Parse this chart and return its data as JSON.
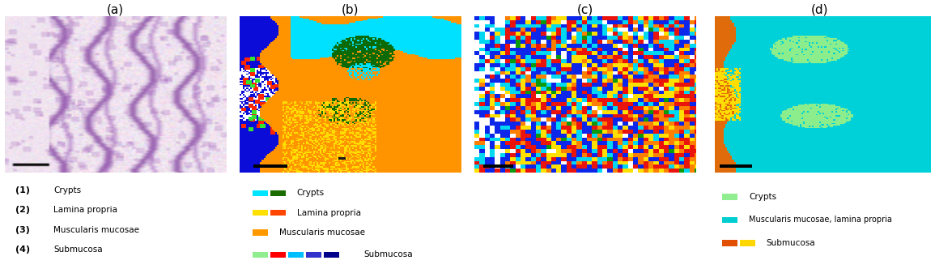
{
  "fig_width": 11.55,
  "fig_height": 3.32,
  "dpi": 100,
  "panel_labels": [
    "(a)",
    "(b)",
    "(c)",
    "(d)"
  ],
  "panel_label_fontsize": 11,
  "background_color": "#ffffff",
  "text_fontsize": 8.0,
  "legend_a_items": [
    {
      "num": "(1)",
      "text": "Crypts"
    },
    {
      "num": "(2)",
      "text": "Lamina propria"
    },
    {
      "num": "(3)",
      "text": "Muscularis mucosae"
    },
    {
      "num": "(4)",
      "text": "Submucosa"
    }
  ],
  "legend_b_items": [
    {
      "label": "Crypts",
      "colors": [
        "#00E5FF",
        "#1A6B00"
      ]
    },
    {
      "label": "Lamina propria",
      "colors": [
        "#FFE000",
        "#FF4500"
      ]
    },
    {
      "label": "Muscularis mucosae",
      "colors": [
        "#FF9900"
      ]
    },
    {
      "label": "Submucosa",
      "colors": [
        "#90EE90",
        "#FF0000",
        "#00BFFF",
        "#3333CC",
        "#00008B"
      ]
    }
  ],
  "legend_d_items": [
    {
      "label": "Crypts",
      "colors": [
        "#90EE90"
      ]
    },
    {
      "label": "Muscularis mucosae, lamina propria",
      "colors": [
        "#00CED1"
      ]
    },
    {
      "label": "Submucosa",
      "colors": [
        "#E05000",
        "#FFD700"
      ]
    }
  ],
  "colors": {
    "orange": [
      1.0,
      0.58,
      0.0
    ],
    "cyan": [
      0.0,
      0.88,
      1.0
    ],
    "green": [
      0.05,
      0.42,
      0.03
    ],
    "yellow": [
      1.0,
      0.87,
      0.0
    ],
    "red": [
      1.0,
      0.15,
      0.0
    ],
    "blue": [
      0.05,
      0.05,
      0.85
    ],
    "white": [
      1.0,
      1.0,
      1.0
    ],
    "cyan2": [
      0.0,
      0.82,
      0.85
    ],
    "green2": [
      0.55,
      0.93,
      0.55
    ],
    "orange2": [
      0.88,
      0.42,
      0.04
    ],
    "yellow2": [
      1.0,
      0.87,
      0.0
    ]
  }
}
